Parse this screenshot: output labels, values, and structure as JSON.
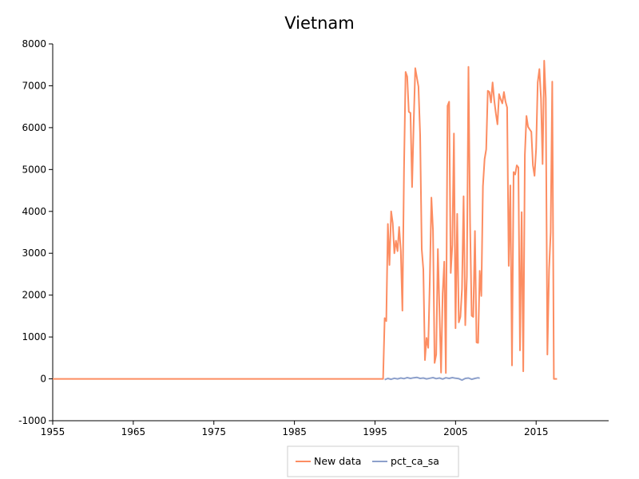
{
  "chart_data": {
    "type": "line",
    "title": "Vietnam",
    "xlabel": "",
    "ylabel": "",
    "xlim": [
      1955,
      2024
    ],
    "ylim": [
      -1000,
      8000
    ],
    "x_ticks": [
      "1955",
      "1965",
      "1975",
      "1985",
      "1995",
      "2005",
      "2015"
    ],
    "y_ticks": [
      "-1000",
      "0",
      "1000",
      "2000",
      "3000",
      "4000",
      "5000",
      "6000",
      "7000",
      "8000"
    ],
    "grid": false,
    "legend_position": "bottom-center",
    "series": [
      {
        "name": "New data",
        "color": "#fc8d62",
        "points": [
          [
            1955.0,
            0
          ],
          [
            1996.0,
            0
          ],
          [
            1996.2,
            1450
          ],
          [
            1996.4,
            1380
          ],
          [
            1996.6,
            3700
          ],
          [
            1996.8,
            2720
          ],
          [
            1997.0,
            4000
          ],
          [
            1997.2,
            3720
          ],
          [
            1997.4,
            3000
          ],
          [
            1997.6,
            3300
          ],
          [
            1997.8,
            3050
          ],
          [
            1998.0,
            3630
          ],
          [
            1998.2,
            3050
          ],
          [
            1998.4,
            1630
          ],
          [
            1998.6,
            5000
          ],
          [
            1998.8,
            7330
          ],
          [
            1999.0,
            7220
          ],
          [
            1999.2,
            6380
          ],
          [
            1999.4,
            6350
          ],
          [
            1999.6,
            4580
          ],
          [
            1999.8,
            6100
          ],
          [
            2000.0,
            7420
          ],
          [
            2000.2,
            7200
          ],
          [
            2000.4,
            6980
          ],
          [
            2000.6,
            5820
          ],
          [
            2000.8,
            3100
          ],
          [
            2001.0,
            2610
          ],
          [
            2001.2,
            450
          ],
          [
            2001.4,
            980
          ],
          [
            2001.6,
            740
          ],
          [
            2001.8,
            2350
          ],
          [
            2002.0,
            4330
          ],
          [
            2002.2,
            3550
          ],
          [
            2002.4,
            380
          ],
          [
            2002.6,
            580
          ],
          [
            2002.8,
            3100
          ],
          [
            2003.0,
            1620
          ],
          [
            2003.2,
            150
          ],
          [
            2003.4,
            2040
          ],
          [
            2003.6,
            2800
          ],
          [
            2003.8,
            140
          ],
          [
            2004.0,
            6520
          ],
          [
            2004.2,
            6620
          ],
          [
            2004.4,
            2530
          ],
          [
            2004.6,
            3200
          ],
          [
            2004.8,
            5860
          ],
          [
            2005.0,
            1210
          ],
          [
            2005.2,
            3940
          ],
          [
            2005.4,
            1350
          ],
          [
            2005.6,
            1480
          ],
          [
            2005.8,
            2150
          ],
          [
            2006.0,
            4360
          ],
          [
            2006.2,
            1280
          ],
          [
            2006.4,
            2450
          ],
          [
            2006.6,
            7450
          ],
          [
            2006.8,
            3750
          ],
          [
            2007.0,
            1510
          ],
          [
            2007.2,
            1480
          ],
          [
            2007.4,
            3530
          ],
          [
            2007.6,
            870
          ],
          [
            2007.8,
            860
          ],
          [
            2008.0,
            2580
          ],
          [
            2008.2,
            1980
          ],
          [
            2008.4,
            4600
          ],
          [
            2008.6,
            5250
          ],
          [
            2008.8,
            5480
          ],
          [
            2009.0,
            6880
          ],
          [
            2009.2,
            6850
          ],
          [
            2009.4,
            6600
          ],
          [
            2009.6,
            7080
          ],
          [
            2009.8,
            6650
          ],
          [
            2010.0,
            6340
          ],
          [
            2010.2,
            6080
          ],
          [
            2010.4,
            6800
          ],
          [
            2010.6,
            6680
          ],
          [
            2010.8,
            6580
          ],
          [
            2011.0,
            6850
          ],
          [
            2011.2,
            6620
          ],
          [
            2011.4,
            6480
          ],
          [
            2011.6,
            2700
          ],
          [
            2011.8,
            4620
          ],
          [
            2012.0,
            320
          ],
          [
            2012.2,
            4940
          ],
          [
            2012.4,
            4880
          ],
          [
            2012.6,
            5100
          ],
          [
            2012.8,
            5050
          ],
          [
            2013.0,
            680
          ],
          [
            2013.2,
            3980
          ],
          [
            2013.4,
            180
          ],
          [
            2013.6,
            5350
          ],
          [
            2013.8,
            6280
          ],
          [
            2014.0,
            6020
          ],
          [
            2014.2,
            5960
          ],
          [
            2014.4,
            5900
          ],
          [
            2014.6,
            5100
          ],
          [
            2014.8,
            4850
          ],
          [
            2015.0,
            5490
          ],
          [
            2015.2,
            7080
          ],
          [
            2015.4,
            7400
          ],
          [
            2015.6,
            6700
          ],
          [
            2015.8,
            5130
          ],
          [
            2016.0,
            7600
          ],
          [
            2016.2,
            6700
          ],
          [
            2016.4,
            580
          ],
          [
            2016.6,
            2600
          ],
          [
            2016.8,
            3500
          ],
          [
            2017.0,
            7100
          ],
          [
            2017.2,
            0
          ],
          [
            2017.6,
            0
          ]
        ]
      },
      {
        "name": "pct_ca_sa",
        "color": "#8da0cb",
        "points": [
          [
            1996.2,
            -20
          ],
          [
            1996.6,
            10
          ],
          [
            1997.0,
            -10
          ],
          [
            1997.4,
            15
          ],
          [
            1997.8,
            0
          ],
          [
            1998.2,
            20
          ],
          [
            1998.6,
            5
          ],
          [
            1999.0,
            30
          ],
          [
            1999.4,
            10
          ],
          [
            1999.8,
            25
          ],
          [
            2000.2,
            35
          ],
          [
            2000.6,
            10
          ],
          [
            2001.0,
            20
          ],
          [
            2001.4,
            0
          ],
          [
            2001.8,
            15
          ],
          [
            2002.2,
            30
          ],
          [
            2002.6,
            5
          ],
          [
            2003.0,
            20
          ],
          [
            2003.4,
            -5
          ],
          [
            2003.8,
            25
          ],
          [
            2004.2,
            10
          ],
          [
            2004.6,
            30
          ],
          [
            2005.0,
            15
          ],
          [
            2005.4,
            5
          ],
          [
            2005.8,
            -30
          ],
          [
            2006.2,
            10
          ],
          [
            2006.6,
            20
          ],
          [
            2007.0,
            -10
          ],
          [
            2007.4,
            10
          ],
          [
            2007.8,
            25
          ],
          [
            2008.0,
            15
          ]
        ]
      }
    ]
  }
}
